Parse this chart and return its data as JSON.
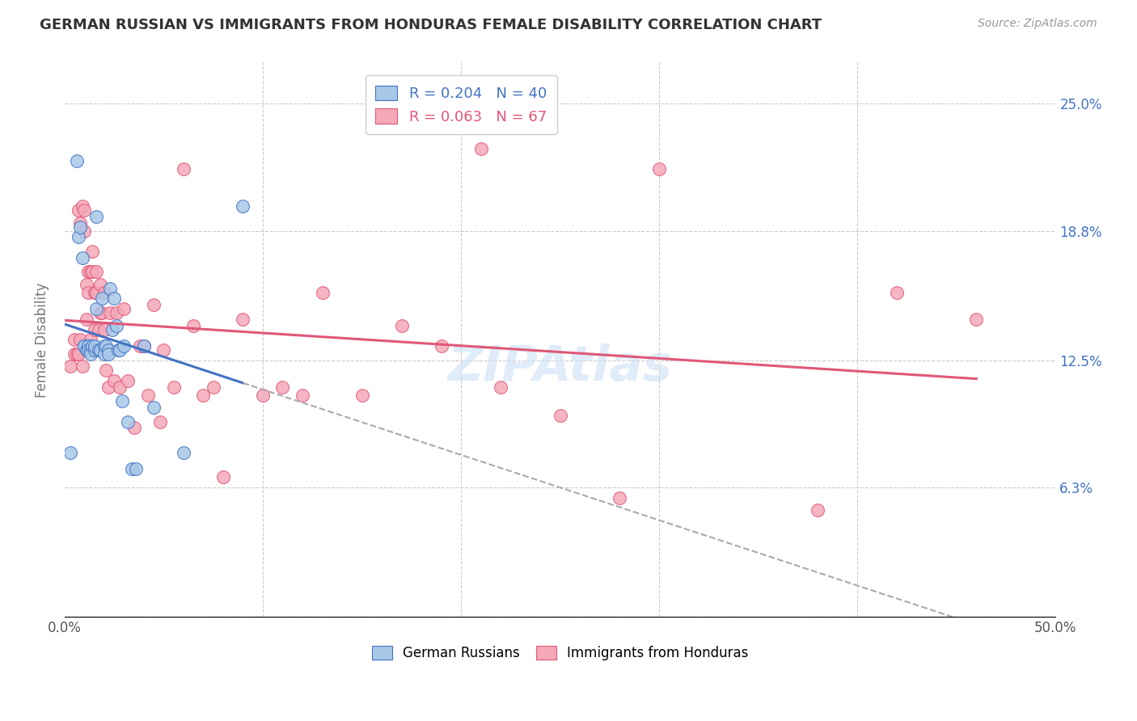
{
  "title": "GERMAN RUSSIAN VS IMMIGRANTS FROM HONDURAS FEMALE DISABILITY CORRELATION CHART",
  "source": "Source: ZipAtlas.com",
  "ylabel": "Female Disability",
  "xlim": [
    0.0,
    0.5
  ],
  "ylim": [
    0.0,
    0.27
  ],
  "ytick_vals": [
    0.0,
    0.063,
    0.125,
    0.188,
    0.25
  ],
  "ytick_labels": [
    "",
    "6.3%",
    "12.5%",
    "18.8%",
    "25.0%"
  ],
  "legend_r1": "R = 0.204",
  "legend_n1": "N = 40",
  "legend_r2": "R = 0.063",
  "legend_n2": "N = 67",
  "color_blue": "#a8c8e8",
  "color_pink": "#f4a8b8",
  "line_blue": "#4472c4",
  "line_pink": "#e05878",
  "line_dash": "#aaaaaa",
  "german_russian_x": [
    0.003,
    0.006,
    0.007,
    0.008,
    0.009,
    0.01,
    0.01,
    0.011,
    0.012,
    0.012,
    0.013,
    0.013,
    0.014,
    0.015,
    0.015,
    0.016,
    0.016,
    0.017,
    0.018,
    0.019,
    0.02,
    0.02,
    0.021,
    0.022,
    0.022,
    0.023,
    0.024,
    0.025,
    0.026,
    0.027,
    0.028,
    0.029,
    0.03,
    0.032,
    0.034,
    0.036,
    0.04,
    0.045,
    0.06,
    0.09
  ],
  "german_russian_y": [
    0.08,
    0.222,
    0.185,
    0.19,
    0.175,
    0.132,
    0.132,
    0.13,
    0.132,
    0.13,
    0.13,
    0.128,
    0.132,
    0.13,
    0.132,
    0.195,
    0.15,
    0.13,
    0.13,
    0.155,
    0.132,
    0.128,
    0.132,
    0.13,
    0.128,
    0.16,
    0.14,
    0.155,
    0.142,
    0.13,
    0.13,
    0.105,
    0.132,
    0.095,
    0.072,
    0.072,
    0.132,
    0.102,
    0.08,
    0.2
  ],
  "honduras_x": [
    0.003,
    0.005,
    0.005,
    0.006,
    0.007,
    0.007,
    0.008,
    0.008,
    0.009,
    0.009,
    0.01,
    0.01,
    0.011,
    0.011,
    0.012,
    0.012,
    0.013,
    0.013,
    0.014,
    0.014,
    0.015,
    0.015,
    0.016,
    0.016,
    0.017,
    0.018,
    0.018,
    0.019,
    0.02,
    0.02,
    0.021,
    0.022,
    0.023,
    0.025,
    0.026,
    0.028,
    0.03,
    0.032,
    0.035,
    0.038,
    0.04,
    0.042,
    0.045,
    0.048,
    0.05,
    0.055,
    0.06,
    0.065,
    0.07,
    0.075,
    0.08,
    0.09,
    0.1,
    0.11,
    0.12,
    0.13,
    0.15,
    0.17,
    0.19,
    0.21,
    0.22,
    0.25,
    0.28,
    0.3,
    0.38,
    0.42,
    0.46
  ],
  "honduras_y": [
    0.122,
    0.128,
    0.135,
    0.128,
    0.128,
    0.198,
    0.192,
    0.135,
    0.2,
    0.122,
    0.198,
    0.188,
    0.162,
    0.145,
    0.168,
    0.158,
    0.168,
    0.135,
    0.178,
    0.168,
    0.158,
    0.14,
    0.168,
    0.158,
    0.14,
    0.162,
    0.148,
    0.148,
    0.158,
    0.14,
    0.12,
    0.112,
    0.148,
    0.115,
    0.148,
    0.112,
    0.15,
    0.115,
    0.092,
    0.132,
    0.132,
    0.108,
    0.152,
    0.095,
    0.13,
    0.112,
    0.218,
    0.142,
    0.108,
    0.112,
    0.068,
    0.145,
    0.108,
    0.112,
    0.108,
    0.158,
    0.108,
    0.142,
    0.132,
    0.228,
    0.112,
    0.098,
    0.058,
    0.218,
    0.052,
    0.158,
    0.145
  ]
}
